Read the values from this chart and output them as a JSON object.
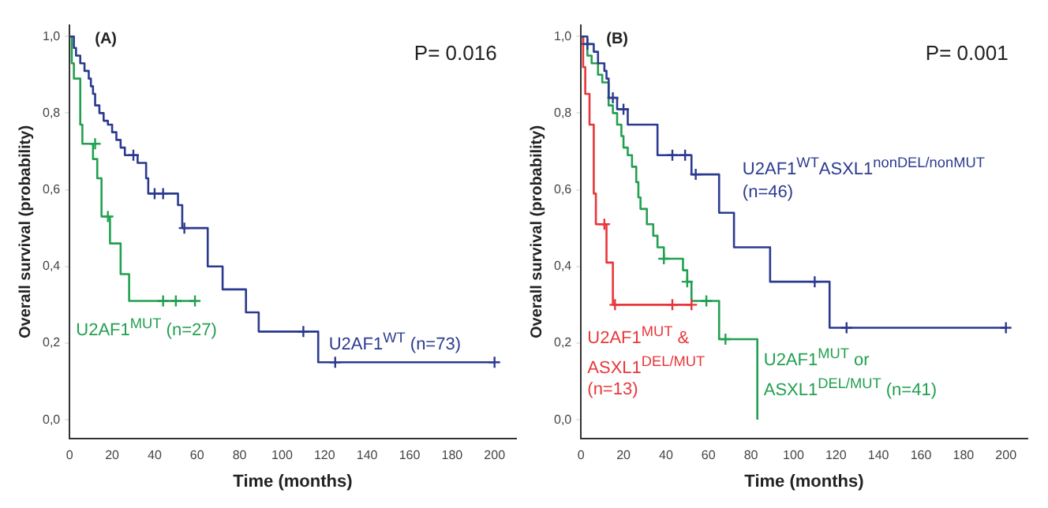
{
  "chart_data": [
    {
      "type": "step",
      "title": "(A)",
      "xlabel": "Time (months)",
      "ylabel": "Overall survival (probability)",
      "annotations": [
        "P= 0.016"
      ],
      "xlim": [
        0,
        210
      ],
      "ylim": [
        -0.05,
        1.03
      ],
      "xticks": [
        0,
        20,
        40,
        60,
        80,
        100,
        120,
        140,
        160,
        180,
        200
      ],
      "yticks": [
        {
          "value": 0,
          "label": "0,0"
        },
        {
          "value": 0.2,
          "label": "0,2"
        },
        {
          "value": 0.4,
          "label": "0,4"
        },
        {
          "value": 0.6,
          "label": "0,6"
        },
        {
          "value": 0.8,
          "label": "0,8"
        },
        {
          "value": 1,
          "label": "1,0"
        }
      ],
      "marker": "none",
      "series": [
        {
          "name": "U2AF1$^{WT}$ (n=73)",
          "color": "#2b3a8f",
          "x": [
            0,
            2,
            3,
            5,
            7,
            9,
            10,
            11,
            12,
            14,
            16,
            18,
            20,
            22,
            24,
            26,
            32,
            36,
            37,
            51,
            53,
            65,
            72,
            83,
            89,
            117,
            200
          ],
          "values": [
            1.0,
            0.97,
            0.95,
            0.93,
            0.91,
            0.89,
            0.87,
            0.85,
            0.82,
            0.8,
            0.78,
            0.77,
            0.75,
            0.73,
            0.71,
            0.69,
            0.67,
            0.63,
            0.59,
            0.56,
            0.5,
            0.4,
            0.34,
            0.28,
            0.23,
            0.15,
            0.15
          ]
        },
        {
          "name": "U2AF1$^{MUT}$ (n=27)",
          "color": "#22a050",
          "x": [
            0,
            1,
            2,
            5,
            6,
            11,
            13,
            15,
            19,
            24,
            28,
            59
          ],
          "values": [
            1.0,
            0.93,
            0.89,
            0.77,
            0.72,
            0.68,
            0.63,
            0.53,
            0.46,
            0.38,
            0.31,
            0.31
          ]
        },
        {
          "type": "scatter",
          "marker": "cross",
          "color": "#2b3a8f",
          "x": [
            30,
            40,
            44,
            54,
            110,
            125,
            200
          ],
          "values": [
            0.69,
            0.59,
            0.59,
            0.5,
            0.23,
            0.15,
            0.15
          ]
        },
        {
          "type": "scatter",
          "marker": "cross",
          "color": "#22a050",
          "x": [
            12,
            18,
            44,
            50,
            59
          ],
          "values": [
            0.72,
            0.53,
            0.31,
            0.31,
            0.31
          ]
        }
      ]
    },
    {
      "type": "step",
      "title": "(B)",
      "xlabel": "Time (months)",
      "ylabel": "Overall survival (probability)",
      "annotations": [
        "P= 0.001"
      ],
      "xlim": [
        0,
        210
      ],
      "ylim": [
        -0.05,
        1.03
      ],
      "xticks": [
        0,
        20,
        40,
        60,
        80,
        100,
        120,
        140,
        160,
        180,
        200
      ],
      "yticks": [
        {
          "value": 0,
          "label": "0,0"
        },
        {
          "value": 0.2,
          "label": "0,2"
        },
        {
          "value": 0.4,
          "label": "0,4"
        },
        {
          "value": 0.6,
          "label": "0,6"
        },
        {
          "value": 0.8,
          "label": "0,8"
        },
        {
          "value": 1,
          "label": "1,0"
        }
      ],
      "marker": "none",
      "series": [
        {
          "name": "U2AF1$^{WT}$ASXL1$^{nonDEL/nonMUT}$ (n=46)",
          "color": "#2b3a8f",
          "x": [
            0,
            3,
            6,
            8,
            11,
            12,
            13,
            17,
            22,
            36,
            52,
            65,
            72,
            89,
            117,
            200
          ],
          "values": [
            1.0,
            0.98,
            0.96,
            0.93,
            0.91,
            0.89,
            0.84,
            0.81,
            0.77,
            0.69,
            0.64,
            0.54,
            0.45,
            0.36,
            0.24,
            0.24
          ]
        },
        {
          "name": "U2AF1$^{MUT}$ & ASXL1$^{DEL/MUT}$ (n=13)",
          "color": "#e8373a",
          "x": [
            0,
            1,
            2,
            4,
            6,
            7,
            12,
            15,
            52
          ],
          "values": [
            1.0,
            0.92,
            0.85,
            0.77,
            0.59,
            0.51,
            0.41,
            0.3,
            0.3
          ]
        },
        {
          "name": "U2AF1$^{MUT}$ or ASXL1$^{DEL/MUT}$ (n=41)",
          "color": "#22a050",
          "x": [
            0,
            1,
            3,
            5,
            8,
            10,
            13,
            15,
            17,
            19,
            20,
            22,
            24,
            26,
            27,
            28,
            31,
            34,
            36,
            39,
            48,
            50,
            52,
            65,
            83,
            83
          ],
          "values": [
            1.0,
            0.98,
            0.95,
            0.93,
            0.9,
            0.88,
            0.82,
            0.8,
            0.77,
            0.74,
            0.71,
            0.69,
            0.66,
            0.62,
            0.58,
            0.55,
            0.51,
            0.48,
            0.45,
            0.42,
            0.39,
            0.36,
            0.31,
            0.21,
            0.21,
            0.0
          ]
        },
        {
          "type": "scatter",
          "marker": "cross",
          "color": "#2b3a8f",
          "x": [
            3,
            15,
            20,
            43,
            49,
            54,
            110,
            125,
            200
          ],
          "values": [
            0.98,
            0.84,
            0.81,
            0.69,
            0.69,
            0.64,
            0.36,
            0.24,
            0.24
          ]
        },
        {
          "type": "scatter",
          "marker": "cross",
          "color": "#e8373a",
          "x": [
            11,
            16,
            43,
            52
          ],
          "values": [
            0.51,
            0.3,
            0.3,
            0.3
          ]
        },
        {
          "type": "scatter",
          "marker": "cross",
          "color": "#22a050",
          "x": [
            39,
            50,
            59,
            68
          ],
          "values": [
            0.42,
            0.36,
            0.31,
            0.21
          ]
        }
      ]
    }
  ]
}
